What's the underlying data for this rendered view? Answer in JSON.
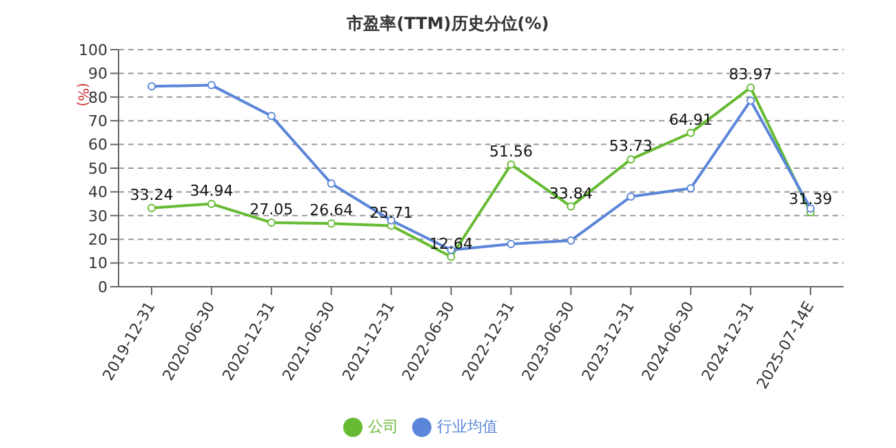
{
  "chart_data": {
    "type": "line",
    "title": "市盈率(TTM)历史分位(%)",
    "ylabel": "(%)",
    "categories": [
      "2019-12-31",
      "2020-06-30",
      "2020-12-31",
      "2021-06-30",
      "2021-12-31",
      "2022-06-30",
      "2022-12-31",
      "2023-06-30",
      "2023-12-31",
      "2024-06-30",
      "2024-12-31",
      "2025-07-14E"
    ],
    "series": [
      {
        "name": "公司",
        "color": "#66bb33",
        "values": [
          33.24,
          34.94,
          27.05,
          26.64,
          25.71,
          12.64,
          51.56,
          33.84,
          53.73,
          64.91,
          83.97,
          31.39
        ],
        "value_labels": [
          "33.24",
          "34.94",
          "27.05",
          "26.64",
          "25.71",
          "12.64",
          "51.56",
          "33.84",
          "53.73",
          "64.91",
          "83.97",
          "31.39"
        ]
      },
      {
        "name": "行业均值",
        "color": "#5b86d9",
        "values": [
          84.5,
          85,
          72,
          43.5,
          28,
          15.5,
          18,
          19.5,
          38,
          41.5,
          78.5,
          33
        ]
      }
    ],
    "ylim": [
      0,
      100
    ],
    "yticks": [
      0,
      10,
      20,
      30,
      40,
      50,
      60,
      70,
      80,
      90,
      100
    ],
    "grid": "y",
    "legend": "bottom",
    "marker": "circle"
  }
}
